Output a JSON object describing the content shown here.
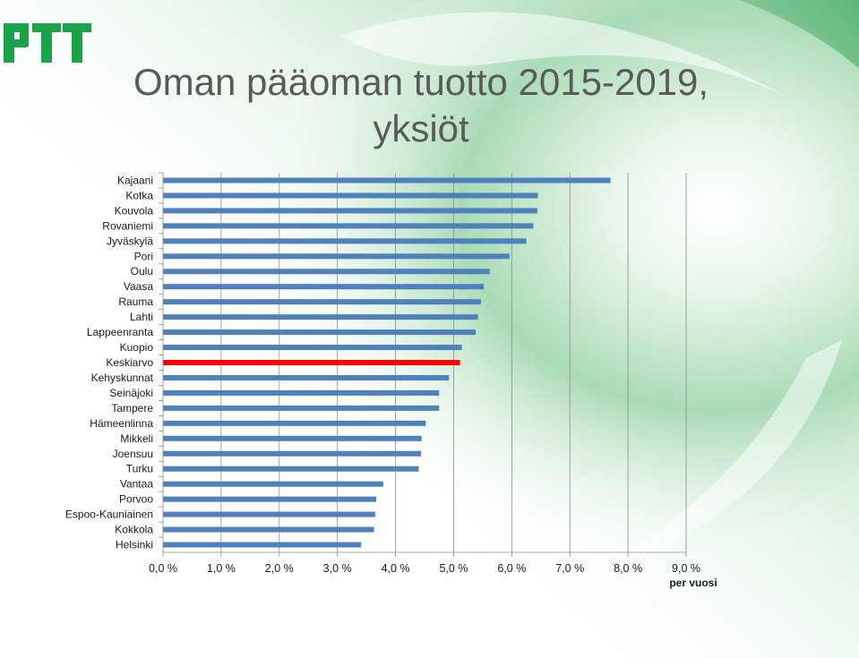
{
  "page": {
    "title_line1": "Oman pääoman tuotto 2015-2019,",
    "title_line2": "yksiöt",
    "logo_text": "PTT",
    "colors": {
      "bar": "#4f81bd",
      "highlight": "#ff0000",
      "logo": "#1aa34a",
      "title": "#5a5a5a"
    }
  },
  "chart_data": {
    "type": "bar",
    "orientation": "horizontal",
    "title": "Oman pääoman tuotto 2015-2019, yksiöt",
    "categories": [
      "Kajaani",
      "Kotka",
      "Kouvola",
      "Rovaniemi",
      "Jyväskylä",
      "Pori",
      "Oulu",
      "Vaasa",
      "Rauma",
      "Lahti",
      "Lappeenranta",
      "Kuopio",
      "Keskiarvo",
      "Kehyskunnat",
      "Seinäjoki",
      "Tampere",
      "Hämeenlinna",
      "Mikkeli",
      "Joensuu",
      "Turku",
      "Vantaa",
      "Porvoo",
      "Espoo-Kauniainen",
      "Kokkola",
      "Helsinki"
    ],
    "values": [
      7.7,
      6.45,
      6.44,
      6.37,
      6.25,
      5.96,
      5.62,
      5.52,
      5.47,
      5.42,
      5.38,
      5.14,
      5.11,
      4.92,
      4.75,
      4.75,
      4.52,
      4.45,
      4.44,
      4.4,
      3.79,
      3.67,
      3.65,
      3.63,
      3.41
    ],
    "highlight_category": "Keskiarvo",
    "xlim": [
      0,
      9
    ],
    "xticks": [
      "0,0 %",
      "1,0 %",
      "2,0 %",
      "3,0 %",
      "4,0 %",
      "5,0 %",
      "6,0 %",
      "7,0 %",
      "8,0 %",
      "9,0 %"
    ],
    "xlabel": "per vuosi",
    "grid": true
  }
}
